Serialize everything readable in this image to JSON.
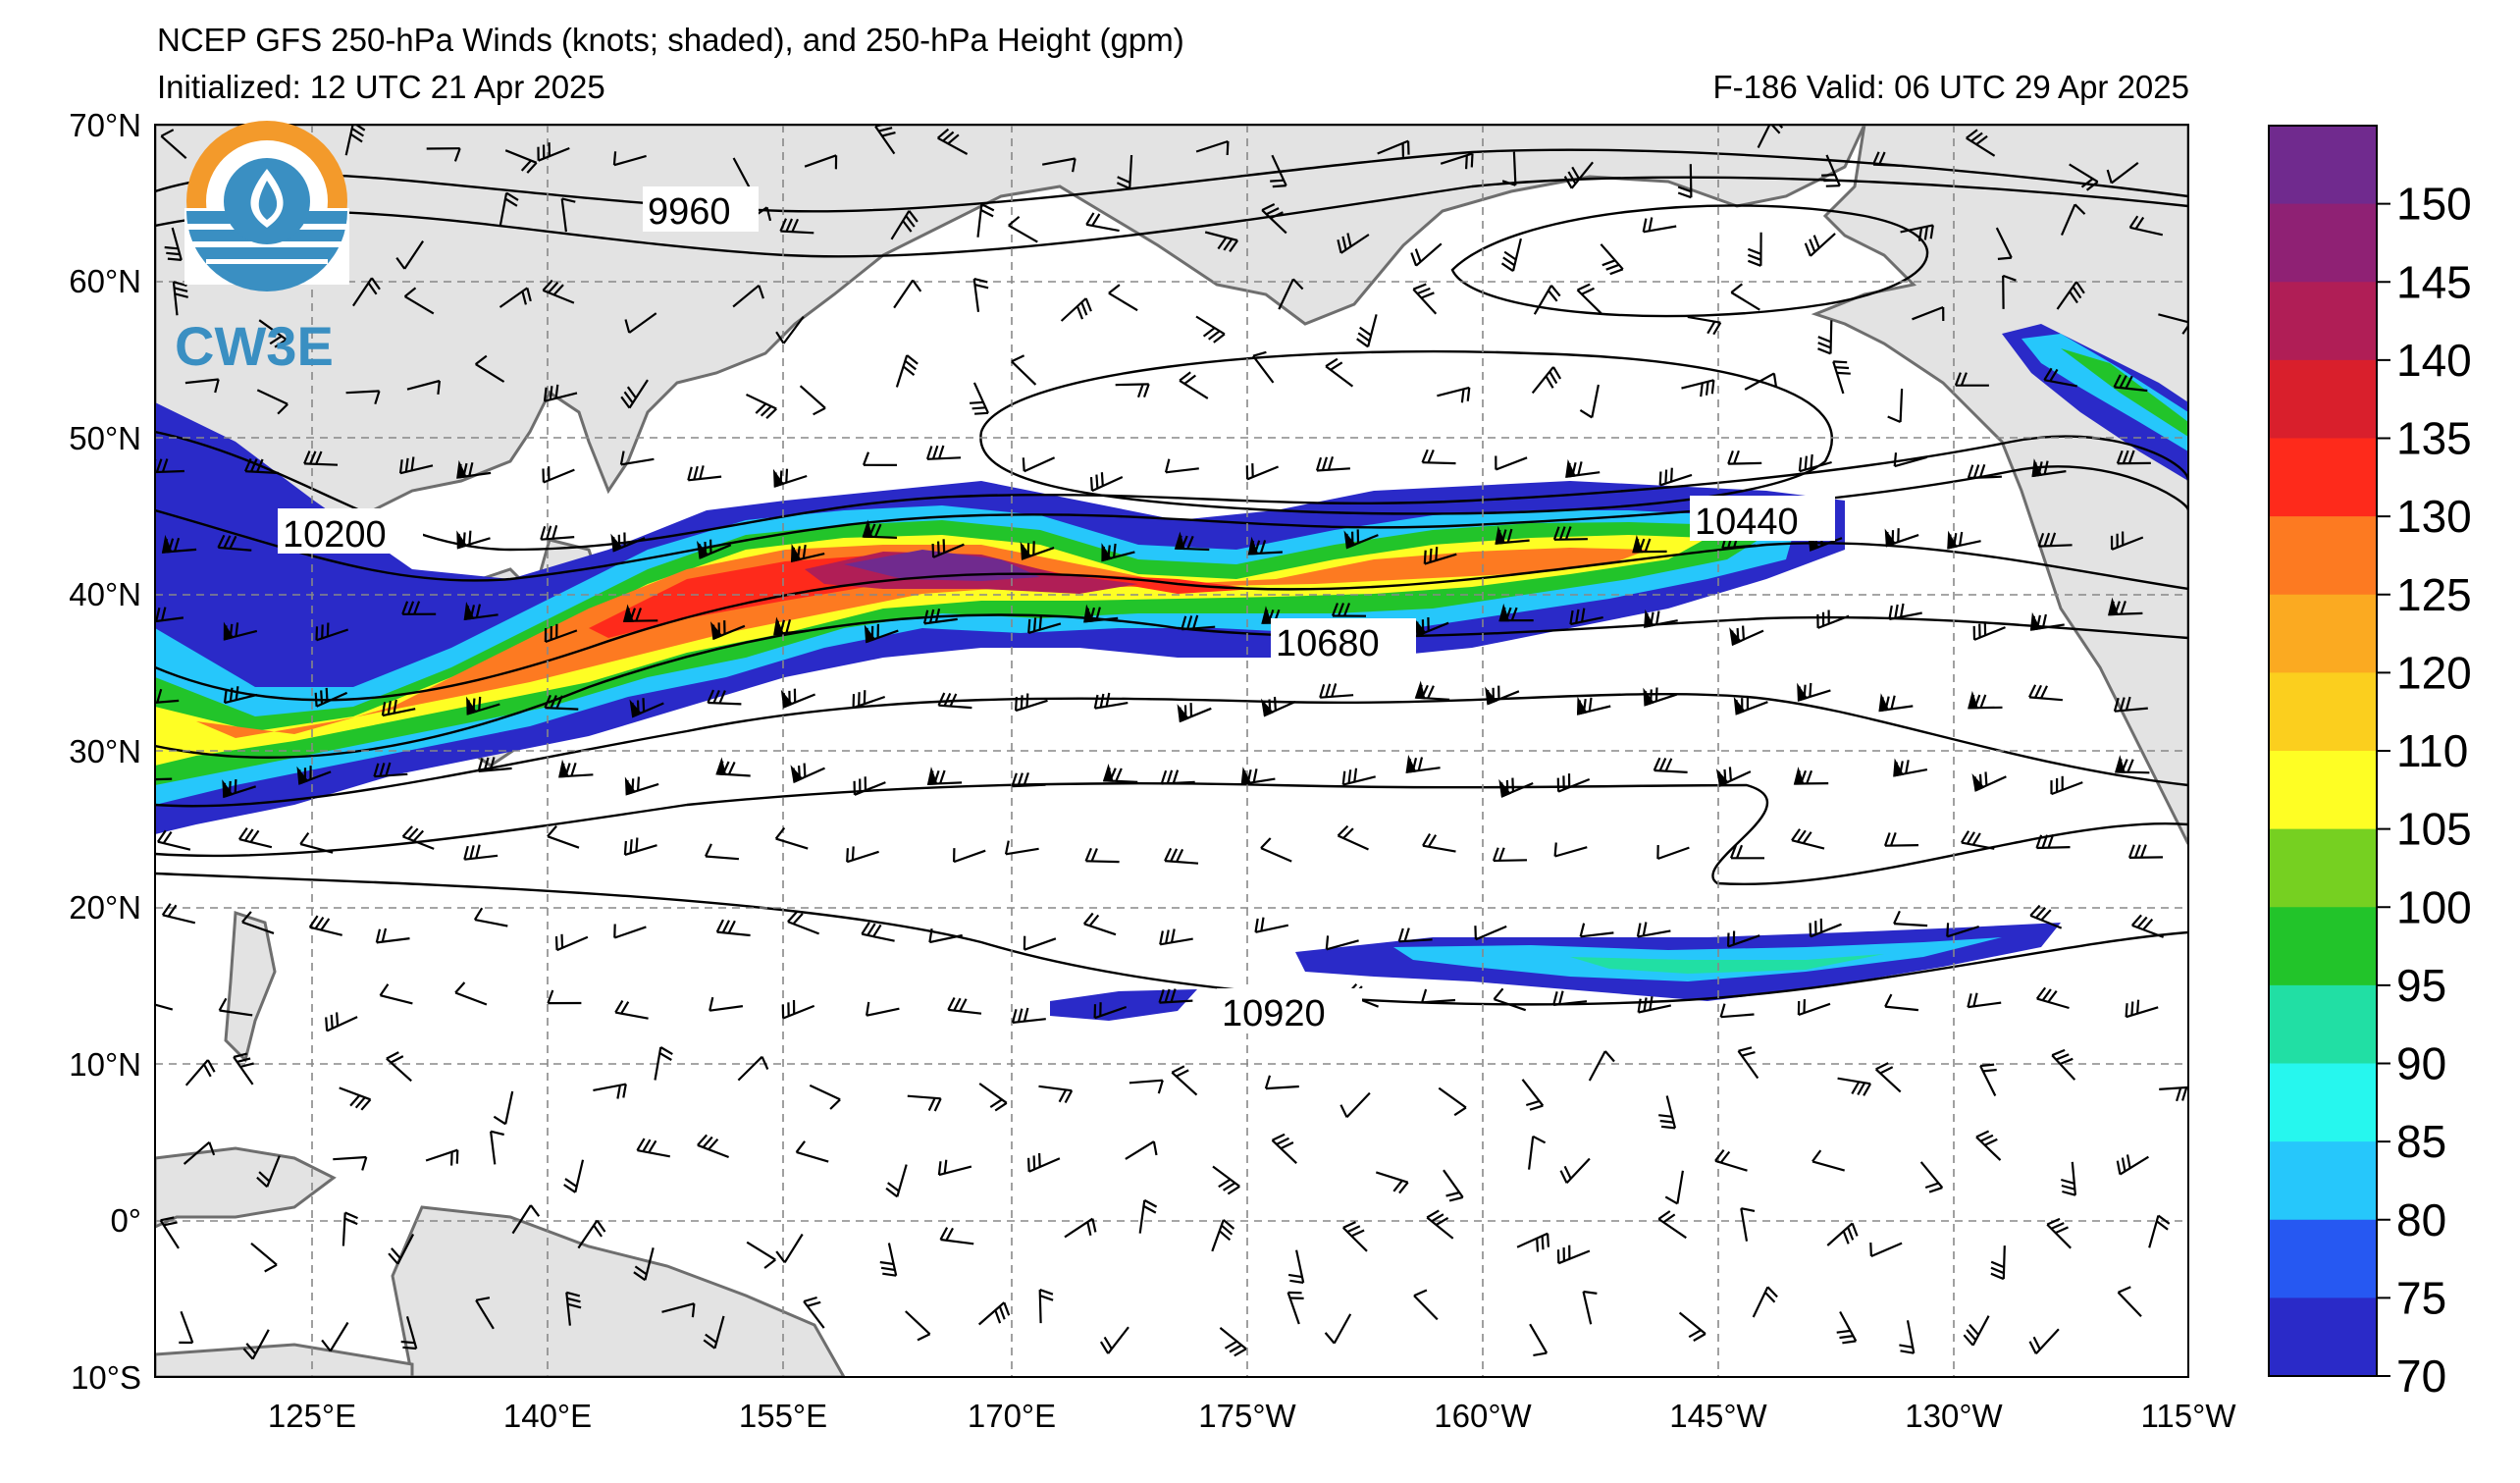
{
  "title": {
    "line1": "NCEP GFS 250-hPa Winds (knots; shaded), and 250-hPa Height (gpm)",
    "line2": "Initialized: 12 UTC 21 Apr 2025",
    "right": "F-186  Valid: 06 UTC 29 Apr 2025"
  },
  "logo": {
    "text": "CW3E",
    "icon": "water-drop-logo-icon"
  },
  "map": {
    "lat_labels": [
      "70°N",
      "60°N",
      "50°N",
      "40°N",
      "30°N",
      "20°N",
      "10°N",
      "0°",
      "10°S"
    ],
    "lon_labels": [
      "125°E",
      "140°E",
      "155°E",
      "170°E",
      "175°W",
      "160°W",
      "145°W",
      "130°W",
      "115°W"
    ],
    "contour_labels": [
      "9960",
      "10200",
      "10440",
      "10680",
      "10920"
    ],
    "land_color": "#e3e3e3",
    "coast_color": "#6e6e6e"
  },
  "colorbar": {
    "ticks": [
      "150",
      "145",
      "140",
      "135",
      "130",
      "125",
      "120",
      "110",
      "105",
      "100",
      "95",
      "90",
      "85",
      "80",
      "75",
      "70"
    ],
    "colors": [
      "#702a8e",
      "#8f2174",
      "#b01e56",
      "#d91f2c",
      "#fe2a1b",
      "#fd7a21",
      "#fbaa21",
      "#fbcf1e",
      "#fefe24",
      "#76d021",
      "#22c42a",
      "#21dfa4",
      "#26f7ee",
      "#26c7fb",
      "#2658f2",
      "#2a2ac8"
    ]
  }
}
